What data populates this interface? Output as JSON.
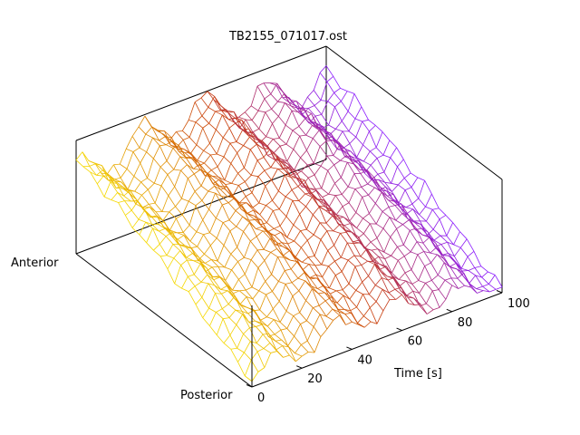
{
  "chart_data": {
    "type": "surface",
    "title": "TB2155_071017.ost",
    "time_label": "Time [s]",
    "time_ticks": [
      0,
      20,
      40,
      60,
      80,
      100
    ],
    "time_range": [
      0,
      100
    ],
    "position_labels": [
      "Anterior",
      "Posterior"
    ],
    "colormap": [
      "#f5d800",
      "#c83c0a",
      "#8a1aff"
    ],
    "surface": {
      "description_of_shape": "mesh of amplitude vs time (0-100 s) and position (anterior-posterior); rolling waves along time, height decreasing toward posterior side",
      "time_samples": 41,
      "position_samples": 26,
      "wave_periods_seconds": [
        25
      ],
      "amplitude_relative": [
        0.15,
        0.55
      ]
    },
    "grid": false
  }
}
